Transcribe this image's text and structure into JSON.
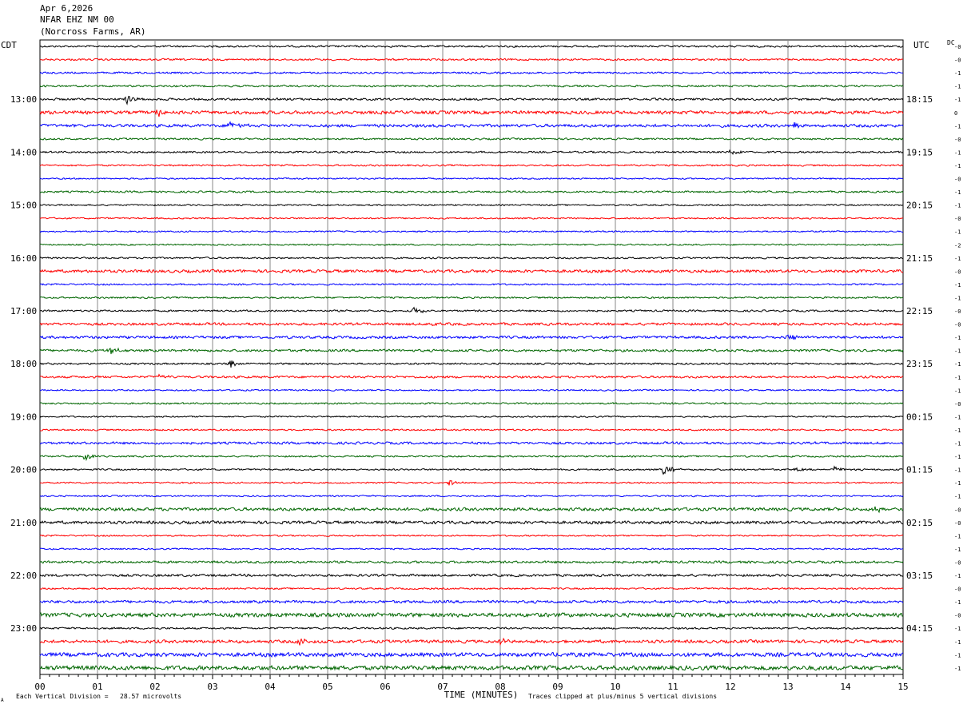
{
  "header": {
    "date": "Apr 6,2026",
    "station": "NFAR EHZ NM 00",
    "location": "(Norcross Farms, AR)"
  },
  "left_axis_title": "CDT",
  "right_axis_title": "UTC",
  "dc_title": "DC",
  "footer": {
    "scale_note": "Each Vertical Division =   28.57 microvolts",
    "clip_note": "Traces clipped at plus/minus 5 vertical divisions",
    "corner_mark": "A"
  },
  "colors": {
    "trace_cycle": [
      "#000000",
      "#ff0000",
      "#0000ff",
      "#006600"
    ],
    "grid": "#888888"
  },
  "chart_data": {
    "type": "line",
    "xlabel": "TIME (MINUTES)",
    "x_ticks": [
      "00",
      "01",
      "02",
      "03",
      "04",
      "05",
      "06",
      "07",
      "08",
      "09",
      "10",
      "11",
      "12",
      "13",
      "14",
      "15"
    ],
    "xlim": [
      0,
      15
    ],
    "rows": 48,
    "left_hour_labels": [
      {
        "row": 4,
        "label": "13:00"
      },
      {
        "row": 8,
        "label": "14:00"
      },
      {
        "row": 12,
        "label": "15:00"
      },
      {
        "row": 16,
        "label": "16:00"
      },
      {
        "row": 20,
        "label": "17:00"
      },
      {
        "row": 24,
        "label": "18:00"
      },
      {
        "row": 28,
        "label": "19:00"
      },
      {
        "row": 32,
        "label": "20:00"
      },
      {
        "row": 36,
        "label": "21:00"
      },
      {
        "row": 40,
        "label": "22:00"
      },
      {
        "row": 44,
        "label": "23:00"
      }
    ],
    "right_hour_labels": [
      {
        "row": 4,
        "label": "18:15"
      },
      {
        "row": 8,
        "label": "19:15"
      },
      {
        "row": 12,
        "label": "20:15"
      },
      {
        "row": 16,
        "label": "21:15"
      },
      {
        "row": 20,
        "label": "22:15"
      },
      {
        "row": 24,
        "label": "23:15"
      },
      {
        "row": 28,
        "label": "00:15"
      },
      {
        "row": 32,
        "label": "01:15"
      },
      {
        "row": 36,
        "label": "02:15"
      },
      {
        "row": 40,
        "label": "03:15"
      },
      {
        "row": 44,
        "label": "04:15"
      }
    ],
    "dc_offsets": [
      "-0",
      "-0",
      "-1",
      "-1",
      "-1",
      "0",
      "-1",
      "-0",
      "-1",
      "-1",
      "-0",
      "-1",
      "-1",
      "-0",
      "-1",
      "-2",
      "-1",
      "-0",
      "-1",
      "-1",
      "-0",
      "-0",
      "-1",
      "-1",
      "-1",
      "-1",
      "-1",
      "-0",
      "-1",
      "-1",
      "-1",
      "-1",
      "-1",
      "-1",
      "-1",
      "-0",
      "-0",
      "-1",
      "-1",
      "-0",
      "-1",
      "-0",
      "-1",
      "-0",
      "-1",
      "-1",
      "-1",
      "-1"
    ],
    "noise_levels": [
      1.0,
      1.0,
      1.0,
      1.0,
      1.2,
      1.8,
      1.6,
      1.0,
      1.0,
      0.9,
      0.8,
      1.0,
      0.8,
      0.8,
      0.8,
      0.8,
      0.9,
      1.6,
      0.9,
      0.9,
      1.0,
      1.4,
      1.4,
      1.3,
      1.0,
      1.2,
      0.8,
      0.9,
      0.8,
      0.9,
      1.3,
      0.9,
      0.9,
      0.8,
      0.8,
      1.7,
      1.6,
      0.8,
      0.8,
      1.3,
      1.3,
      0.9,
      1.5,
      2.2,
      1.0,
      1.7,
      2.2,
      2.4
    ],
    "events": [
      {
        "row": 4,
        "minute": 1.5,
        "amp": 6
      },
      {
        "row": 5,
        "minute": 2.0,
        "amp": 8
      },
      {
        "row": 6,
        "minute": 3.3,
        "amp": 6
      },
      {
        "row": 6,
        "minute": 13.1,
        "amp": 5
      },
      {
        "row": 8,
        "minute": 12.0,
        "amp": 5
      },
      {
        "row": 20,
        "minute": 6.5,
        "amp": 5
      },
      {
        "row": 21,
        "minute": 6.8,
        "amp": 5
      },
      {
        "row": 22,
        "minute": 13.0,
        "amp": 5
      },
      {
        "row": 23,
        "minute": 1.2,
        "amp": 5
      },
      {
        "row": 24,
        "minute": 3.3,
        "amp": 5
      },
      {
        "row": 25,
        "minute": 2.1,
        "amp": 5
      },
      {
        "row": 31,
        "minute": 0.8,
        "amp": 5
      },
      {
        "row": 32,
        "minute": 10.85,
        "amp": 10
      },
      {
        "row": 32,
        "minute": 13.1,
        "amp": 4
      },
      {
        "row": 32,
        "minute": 13.8,
        "amp": 4
      },
      {
        "row": 33,
        "minute": 7.1,
        "amp": 5
      },
      {
        "row": 35,
        "minute": 14.5,
        "amp": 4
      },
      {
        "row": 45,
        "minute": 4.5,
        "amp": 5
      },
      {
        "row": 45,
        "minute": 8.0,
        "amp": 5
      }
    ]
  }
}
